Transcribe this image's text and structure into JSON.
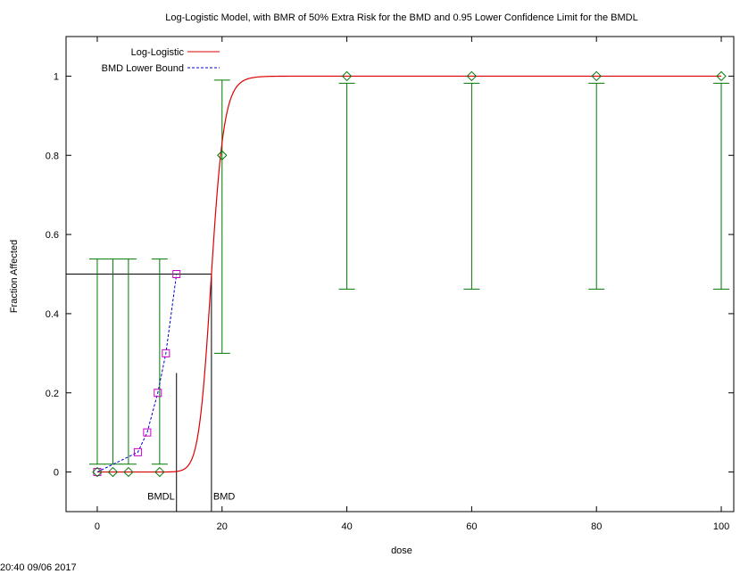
{
  "timestamp": "20:40 09/06 2017",
  "chart_data": {
    "type": "scatter",
    "title": "Log-Logistic Model, with BMR of 50% Extra Risk for the BMD and 0.95 Lower Confidence Limit for the BMDL",
    "xlabel": "dose",
    "ylabel": "Fraction Affected",
    "xlim": [
      -5,
      102
    ],
    "ylim": [
      -0.1,
      1.1
    ],
    "x_ticks": [
      0,
      20,
      40,
      60,
      80,
      100
    ],
    "x_tick_labels": [
      "0",
      "20",
      "40",
      "60",
      "80",
      "100"
    ],
    "y_ticks": [
      0,
      0.2,
      0.4,
      0.6,
      0.8,
      1
    ],
    "y_tick_labels": [
      "0",
      "0.2",
      "0.4",
      "0.6",
      "0.8",
      "1"
    ],
    "grid": false,
    "legend_position": "top-left",
    "series": [
      {
        "name": "Log-Logistic",
        "kind": "line",
        "color": "#dd0000",
        "model": {
          "background": 0,
          "bmd": 18.3,
          "slope": 18
        }
      },
      {
        "name": "BMD Lower Bound",
        "kind": "dashed-line",
        "color": "#0000cc",
        "marker_color": "#cc00cc",
        "x": [
          0,
          6.5,
          8,
          9.7,
          11,
          12.7
        ],
        "y": [
          0,
          0.05,
          0.1,
          0.2,
          0.3,
          0.5
        ]
      },
      {
        "kind": "observed",
        "color": "#007700",
        "x": [
          0,
          2.5,
          5,
          10,
          20,
          40,
          60,
          80,
          100
        ],
        "y": [
          0,
          0,
          0,
          0,
          0.8,
          1,
          1,
          1,
          1
        ],
        "lower": [
          0,
          0,
          0,
          0,
          0.3,
          0.462,
          0.462,
          0.462,
          0.462
        ],
        "upper": [
          0.538,
          0.538,
          0.538,
          0.538,
          0.99,
          1,
          1,
          1,
          1
        ],
        "whisker_low_y": [
          0.02,
          0.02,
          0.02,
          0.02,
          0.3,
          0.462,
          0.462,
          0.462,
          0.462
        ],
        "whisker_high_y": [
          0.538,
          0.538,
          0.538,
          0.538,
          0.99,
          0.982,
          0.982,
          0.982,
          0.982
        ]
      }
    ],
    "bmr_level": 0.5,
    "bmd": {
      "label": "BMD",
      "x": 18.3
    },
    "bmdl": {
      "label": "BMDL",
      "x": 12.7,
      "line_top_y": 0.25
    }
  }
}
